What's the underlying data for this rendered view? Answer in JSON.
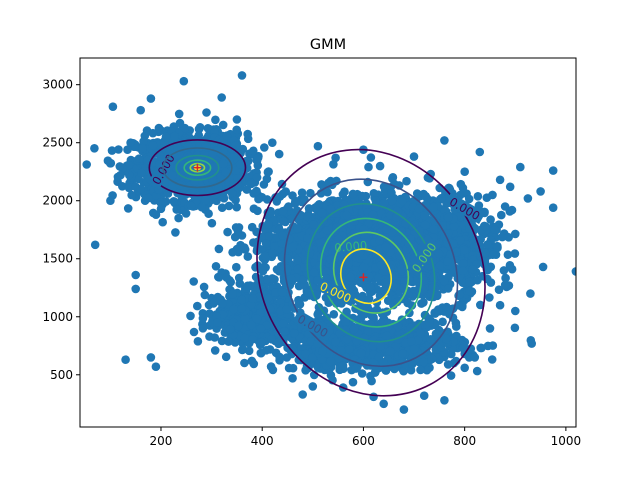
{
  "chart_data": {
    "type": "scatter",
    "title": "GMM",
    "xlabel": "",
    "ylabel": "",
    "xlim": [
      40,
      1020
    ],
    "ylim": [
      50,
      3230
    ],
    "xticks": [
      200,
      400,
      600,
      800,
      1000
    ],
    "yticks": [
      500,
      1000,
      1500,
      2000,
      2500,
      3000
    ],
    "point_color": "#1f77b4",
    "grid": false,
    "clusters": [
      {
        "center": [
          260,
          2290
        ],
        "spread": [
          55,
          140
        ],
        "count": 1300
      },
      {
        "center": [
          580,
          1620
        ],
        "spread": [
          95,
          210
        ],
        "count": 1900
      },
      {
        "center": [
          720,
          1600
        ],
        "spread": [
          70,
          230
        ],
        "count": 900
      },
      {
        "center": [
          380,
          1000
        ],
        "spread": [
          45,
          120
        ],
        "count": 450
      },
      {
        "center": [
          610,
          760
        ],
        "spread": [
          90,
          110
        ],
        "count": 900
      }
    ],
    "outliers": [
      [
        70,
        1620
      ],
      [
        105,
        2810
      ],
      [
        130,
        630
      ],
      [
        150,
        1360
      ],
      [
        150,
        1240
      ],
      [
        180,
        2880
      ],
      [
        180,
        650
      ],
      [
        190,
        570
      ],
      [
        360,
        3080
      ],
      [
        245,
        3030
      ],
      [
        120,
        2220
      ],
      [
        100,
        2000
      ],
      [
        140,
        2500
      ],
      [
        160,
        2780
      ],
      [
        975,
        1940
      ],
      [
        975,
        2260
      ],
      [
        950,
        2080
      ],
      [
        925,
        2020
      ],
      [
        910,
        2290
      ],
      [
        890,
        2120
      ],
      [
        880,
        1950
      ],
      [
        870,
        2180
      ],
      [
        860,
        1750
      ],
      [
        855,
        2050
      ],
      [
        840,
        1550
      ],
      [
        835,
        1350
      ],
      [
        870,
        1100
      ],
      [
        850,
        900
      ],
      [
        955,
        1430
      ],
      [
        930,
        1200
      ],
      [
        900,
        1050
      ],
      [
        680,
        200
      ],
      [
        640,
        250
      ],
      [
        620,
        310
      ],
      [
        480,
        330
      ],
      [
        500,
        400
      ],
      [
        460,
        470
      ],
      [
        560,
        390
      ],
      [
        760,
        280
      ],
      [
        720,
        320
      ],
      [
        820,
        650
      ],
      [
        800,
        560
      ],
      [
        450,
        1500
      ],
      [
        420,
        1550
      ],
      [
        440,
        1700
      ],
      [
        470,
        1760
      ],
      [
        510,
        2470
      ],
      [
        545,
        2370
      ],
      [
        600,
        2440
      ],
      [
        610,
        2290
      ],
      [
        700,
        2380
      ],
      [
        760,
        2520
      ],
      [
        830,
        2420
      ],
      [
        800,
        2250
      ],
      [
        320,
        2890
      ],
      [
        290,
        2760
      ],
      [
        210,
        2550
      ],
      [
        330,
        2560
      ],
      [
        350,
        2700
      ],
      [
        420,
        2500
      ],
      [
        390,
        2200
      ],
      [
        200,
        1930
      ],
      [
        160,
        2100
      ]
    ],
    "components": [
      {
        "mean": [
          272,
          2285
        ],
        "sx": 95,
        "sy": 240,
        "rho": 0.1,
        "weight": 0.35
      },
      {
        "mean": [
          600,
          1330
        ],
        "sx": 120,
        "sy": 450,
        "rho": 0.3,
        "weight": 0.65
      }
    ],
    "ellipses": [
      {
        "cx": 272,
        "cy": 2285,
        "rx": 95,
        "ry": 240,
        "angle": 0,
        "color": "#440154",
        "level": "0.000",
        "label_pos": [
          205,
          2270
        ],
        "label_rot": -60
      },
      {
        "cx": 272,
        "cy": 2285,
        "rx": 68,
        "ry": 170,
        "angle": 0,
        "color": "#31688e",
        "level": "",
        "label_pos": [
          0,
          0
        ],
        "label_rot": 0
      },
      {
        "cx": 272,
        "cy": 2285,
        "rx": 42,
        "ry": 105,
        "angle": 0,
        "color": "#21918c",
        "level": "",
        "label_pos": [
          0,
          0
        ],
        "label_rot": 0
      },
      {
        "cx": 272,
        "cy": 2285,
        "rx": 26,
        "ry": 65,
        "angle": 0,
        "color": "#35b779",
        "level": "",
        "label_pos": [
          0,
          0
        ],
        "label_rot": 0
      },
      {
        "cx": 272,
        "cy": 2285,
        "rx": 14,
        "ry": 35,
        "angle": 0,
        "color": "#90d743",
        "level": "",
        "label_pos": [
          0,
          0
        ],
        "label_rot": 0
      },
      {
        "cx": 272,
        "cy": 2285,
        "rx": 6,
        "ry": 15,
        "angle": 0,
        "color": "#fde725",
        "level": "",
        "label_pos": [
          0,
          0
        ],
        "label_rot": 0
      },
      {
        "cx": 615,
        "cy": 1380,
        "rx": 250,
        "ry": 950,
        "angle": 62,
        "color": "#440154",
        "level": "0.000",
        "label_pos": [
          800,
          1930
        ],
        "label_rot": 30
      },
      {
        "cx": 615,
        "cy": 1380,
        "rx": 190,
        "ry": 720,
        "angle": 62,
        "color": "#3b528b",
        "level": "0.000",
        "label_pos": [
          500,
          920
        ],
        "label_rot": 30
      },
      {
        "cx": 615,
        "cy": 1380,
        "rx": 140,
        "ry": 530,
        "angle": 62,
        "color": "#21918c",
        "level": "",
        "label_pos": [
          0,
          0
        ],
        "label_rot": 0
      },
      {
        "cx": 615,
        "cy": 1380,
        "rx": 110,
        "ry": 420,
        "angle": 62,
        "color": "#35b779",
        "level": "0.000",
        "label_pos": [
          575,
          1605
        ],
        "label_rot": -5
      },
      {
        "cx": 615,
        "cy": 1380,
        "rx": 82,
        "ry": 310,
        "angle": 62,
        "color": "#5ec962",
        "level": "0.000",
        "label_pos": [
          720,
          1510
        ],
        "label_rot": -55
      },
      {
        "cx": 605,
        "cy": 1350,
        "rx": 55,
        "ry": 210,
        "angle": 62,
        "color": "#fde725",
        "level": "0.000",
        "label_pos": [
          545,
          1210
        ],
        "label_rot": 25
      }
    ],
    "centers": [
      [
        272,
        2285
      ],
      [
        600,
        1340
      ]
    ],
    "center_color": "#d62728"
  }
}
